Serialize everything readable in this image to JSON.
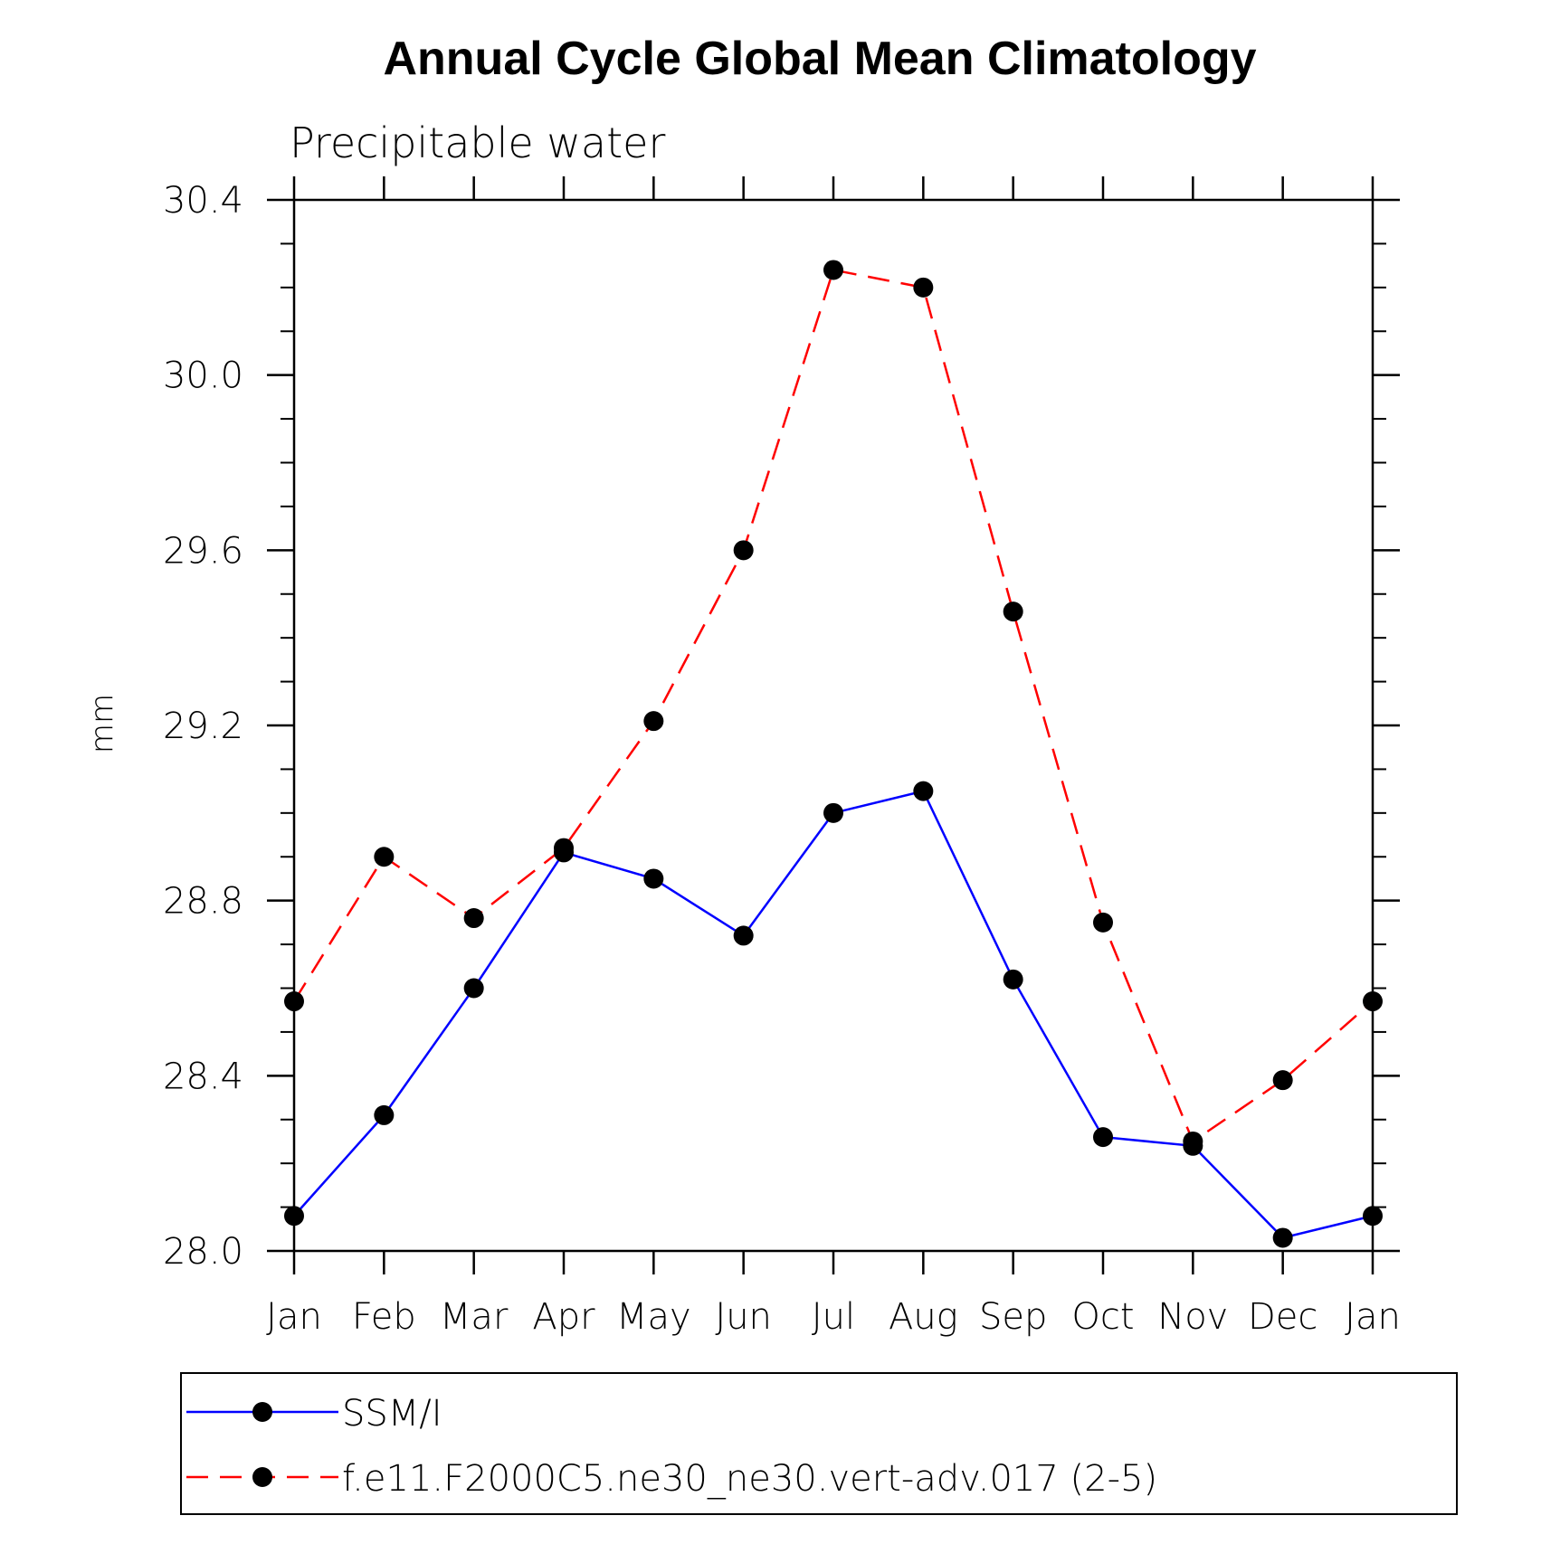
{
  "chart_data": {
    "type": "line",
    "title": "Annual Cycle Global Mean Climatology",
    "subtitle": "Precipitable water",
    "xlabel": "",
    "ylabel": "mm",
    "categories": [
      "Jan",
      "Feb",
      "Mar",
      "Apr",
      "May",
      "Jun",
      "Jul",
      "Aug",
      "Sep",
      "Oct",
      "Nov",
      "Dec",
      "Jan"
    ],
    "ylim": [
      28.0,
      30.4
    ],
    "yticks": [
      "28.0",
      "28.4",
      "28.8",
      "29.2",
      "29.6",
      "30.0",
      "30.4"
    ],
    "y_minor_step": 0.1,
    "grid": false,
    "legend_position": "bottom",
    "series": [
      {
        "name": "SSM/I",
        "color": "#0000ff",
        "line_style": "solid",
        "marker": "filled-circle",
        "values": [
          28.08,
          28.31,
          28.6,
          28.91,
          28.85,
          28.72,
          29.0,
          29.05,
          28.62,
          28.26,
          28.24,
          28.03,
          28.08
        ]
      },
      {
        "name": "f.e11.F2000C5.ne30_ne30.vert-adv.017 (2-5)",
        "color": "#ff0000",
        "line_style": "dashed",
        "marker": "filled-circle",
        "values": [
          28.57,
          28.9,
          28.76,
          28.92,
          29.21,
          29.6,
          30.24,
          30.2,
          29.46,
          28.75,
          28.25,
          28.39,
          28.57
        ]
      }
    ]
  }
}
